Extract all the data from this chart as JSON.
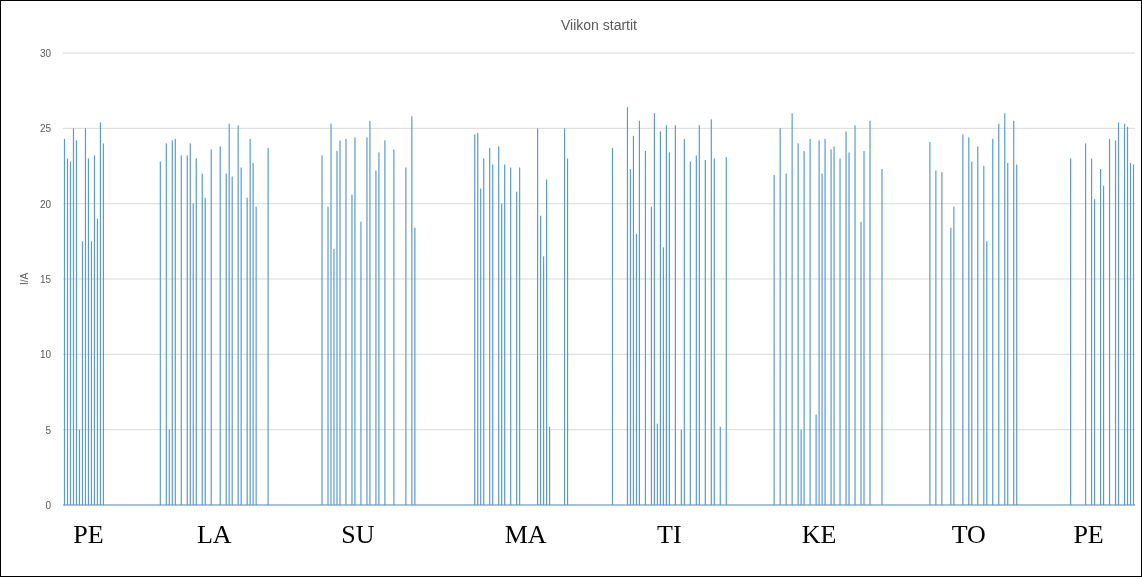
{
  "chart_data": {
    "type": "bar",
    "title": "Viikon startit",
    "ylabel": "I/A",
    "color": "#5b9bd5",
    "categories": [
      null,
      null,
      null,
      null,
      null,
      null,
      null,
      null,
      "PE",
      null,
      null,
      null,
      null,
      null,
      null,
      null,
      null,
      null,
      null,
      null,
      null,
      null,
      null,
      null,
      null,
      null,
      null,
      null,
      null,
      null,
      null,
      null,
      null,
      null,
      null,
      null,
      null,
      null,
      null,
      null,
      null,
      null,
      null,
      null,
      null,
      null,
      null,
      null,
      null,
      null,
      "LA",
      null,
      null,
      null,
      null,
      null,
      null,
      null,
      null,
      null,
      null,
      null,
      null,
      null,
      null,
      null,
      null,
      null,
      null,
      null,
      null,
      null,
      null,
      null,
      null,
      null,
      null,
      null,
      null,
      null,
      null,
      null,
      null,
      null,
      null,
      null,
      null,
      null,
      null,
      null,
      null,
      null,
      null,
      null,
      null,
      null,
      null,
      null,
      "SU",
      null,
      null,
      null,
      null,
      null,
      null,
      null,
      null,
      null,
      null,
      null,
      null,
      null,
      null,
      null,
      null,
      null,
      null,
      null,
      null,
      null,
      null,
      null,
      null,
      null,
      null,
      null,
      null,
      null,
      null,
      null,
      null,
      null,
      null,
      null,
      null,
      null,
      null,
      null,
      null,
      null,
      null,
      null,
      null,
      null,
      null,
      null,
      null,
      null,
      null,
      null,
      null,
      null,
      null,
      null,
      "MA",
      null,
      null,
      null,
      null,
      null,
      null,
      null,
      null,
      null,
      null,
      null,
      null,
      null,
      null,
      null,
      null,
      null,
      null,
      null,
      null,
      null,
      null,
      null,
      null,
      null,
      null,
      null,
      null,
      null,
      null,
      null,
      null,
      null,
      null,
      null,
      null,
      null,
      null,
      null,
      null,
      null,
      null,
      null,
      null,
      null,
      null,
      null,
      "TI",
      null,
      null,
      null,
      null,
      null,
      null,
      null,
      null,
      null,
      null,
      null,
      null,
      null,
      null,
      null,
      null,
      null,
      null,
      null,
      null,
      null,
      null,
      null,
      null,
      null,
      null,
      null,
      null,
      null,
      null,
      null,
      null,
      null,
      null,
      null,
      null,
      null,
      null,
      null,
      null,
      null,
      null,
      null,
      null,
      null,
      null,
      null,
      null,
      null,
      "KE",
      null,
      null,
      null,
      null,
      null,
      null,
      null,
      null,
      null,
      null,
      null,
      null,
      null,
      null,
      null,
      null,
      null,
      null,
      null,
      null,
      null,
      null,
      null,
      null,
      null,
      null,
      null,
      null,
      null,
      null,
      null,
      null,
      null,
      null,
      null,
      null,
      null,
      null,
      null,
      null,
      null,
      null,
      null,
      null,
      null,
      null,
      null,
      null,
      null,
      "TO",
      null,
      null,
      null,
      null,
      null,
      null,
      null,
      null,
      null,
      null,
      null,
      null,
      null,
      null,
      null,
      null,
      null,
      null,
      null,
      null,
      null,
      null,
      null,
      null,
      null,
      null,
      null,
      null,
      null,
      null,
      null,
      null,
      null,
      null,
      null,
      null,
      null,
      null,
      null,
      "PE",
      null,
      null,
      null,
      null,
      null,
      null,
      null,
      null,
      null,
      null,
      null,
      null,
      null,
      null,
      null
    ],
    "values": [
      24.3,
      23,
      22.8,
      25,
      24.2,
      5,
      17.5,
      25,
      23,
      17.5,
      23.2,
      19,
      25.4,
      24,
      null,
      null,
      null,
      null,
      null,
      null,
      null,
      null,
      null,
      null,
      null,
      null,
      null,
      null,
      null,
      null,
      null,
      null,
      22.8,
      null,
      24,
      5,
      24.2,
      24.3,
      null,
      23.2,
      null,
      23.2,
      24,
      20,
      23,
      null,
      22,
      20.4,
      null,
      23.6,
      null,
      null,
      23.8,
      null,
      22,
      25.3,
      21.8,
      null,
      25.2,
      22.4,
      null,
      20.4,
      24.3,
      22.7,
      19.8,
      null,
      null,
      null,
      23.7,
      null,
      null,
      null,
      null,
      null,
      null,
      null,
      null,
      null,
      null,
      null,
      null,
      null,
      null,
      null,
      null,
      null,
      23.2,
      null,
      19.8,
      25.3,
      17,
      23.5,
      24.2,
      null,
      24.3,
      null,
      20.6,
      24.4,
      null,
      18.8,
      null,
      24.4,
      25.5,
      null,
      22.2,
      23.4,
      null,
      24.2,
      null,
      null,
      23.6,
      null,
      null,
      null,
      22.4,
      null,
      25.8,
      18.4,
      null,
      null,
      null,
      null,
      null,
      null,
      null,
      null,
      null,
      null,
      null,
      null,
      null,
      null,
      null,
      null,
      null,
      null,
      null,
      24.6,
      24.7,
      21,
      23,
      null,
      23.7,
      22.6,
      null,
      23.8,
      20,
      22.6,
      null,
      22.4,
      null,
      20.8,
      22.4,
      null,
      null,
      null,
      null,
      null,
      25,
      19.2,
      16.5,
      21.6,
      5.2,
      null,
      null,
      null,
      null,
      25,
      23,
      null,
      null,
      null,
      null,
      null,
      null,
      null,
      null,
      null,
      null,
      null,
      null,
      null,
      null,
      23.7,
      null,
      null,
      null,
      null,
      26.4,
      22.3,
      24.5,
      18,
      25.5,
      null,
      23.5,
      null,
      19.8,
      26,
      5.4,
      24.8,
      17.1,
      25.2,
      23.4,
      null,
      25.2,
      null,
      5,
      24.3,
      null,
      22.8,
      null,
      23.2,
      25.2,
      null,
      22.9,
      null,
      25.6,
      23,
      null,
      5.2,
      null,
      23.1,
      null,
      null,
      null,
      null,
      null,
      null,
      null,
      null,
      null,
      null,
      null,
      null,
      null,
      null,
      null,
      21.9,
      null,
      25,
      null,
      22,
      null,
      26,
      null,
      24,
      5,
      23.5,
      null,
      24.3,
      null,
      6,
      24.2,
      22,
      24.3,
      null,
      23.6,
      23.8,
      null,
      23,
      null,
      24.8,
      23.4,
      null,
      25.2,
      null,
      18.8,
      23.5,
      null,
      25.5,
      null,
      null,
      null,
      22.3,
      null,
      null,
      null,
      null,
      null,
      null,
      null,
      null,
      null,
      null,
      null,
      null,
      null,
      null,
      null,
      24.1,
      null,
      22.2,
      null,
      22.1,
      null,
      null,
      18.4,
      19.8,
      null,
      null,
      24.6,
      null,
      24.4,
      22.8,
      null,
      23.8,
      null,
      22.5,
      17.5,
      null,
      24.3,
      null,
      25.3,
      null,
      26,
      22.7,
      null,
      25.5,
      22.6,
      null,
      null,
      null,
      null,
      null,
      null,
      null,
      null,
      null,
      null,
      null,
      null,
      null,
      null,
      null,
      null,
      null,
      23,
      null,
      null,
      null,
      null,
      24,
      null,
      23,
      20.3,
      null,
      22.3,
      21.2,
      null,
      24.3,
      null,
      24.2,
      25.4,
      null,
      25.3,
      25.1,
      22.7,
      22.6
    ],
    "ylim": [
      0,
      30
    ],
    "yticks": [
      0,
      5,
      10,
      15,
      20,
      25,
      30
    ],
    "grid": "y"
  }
}
